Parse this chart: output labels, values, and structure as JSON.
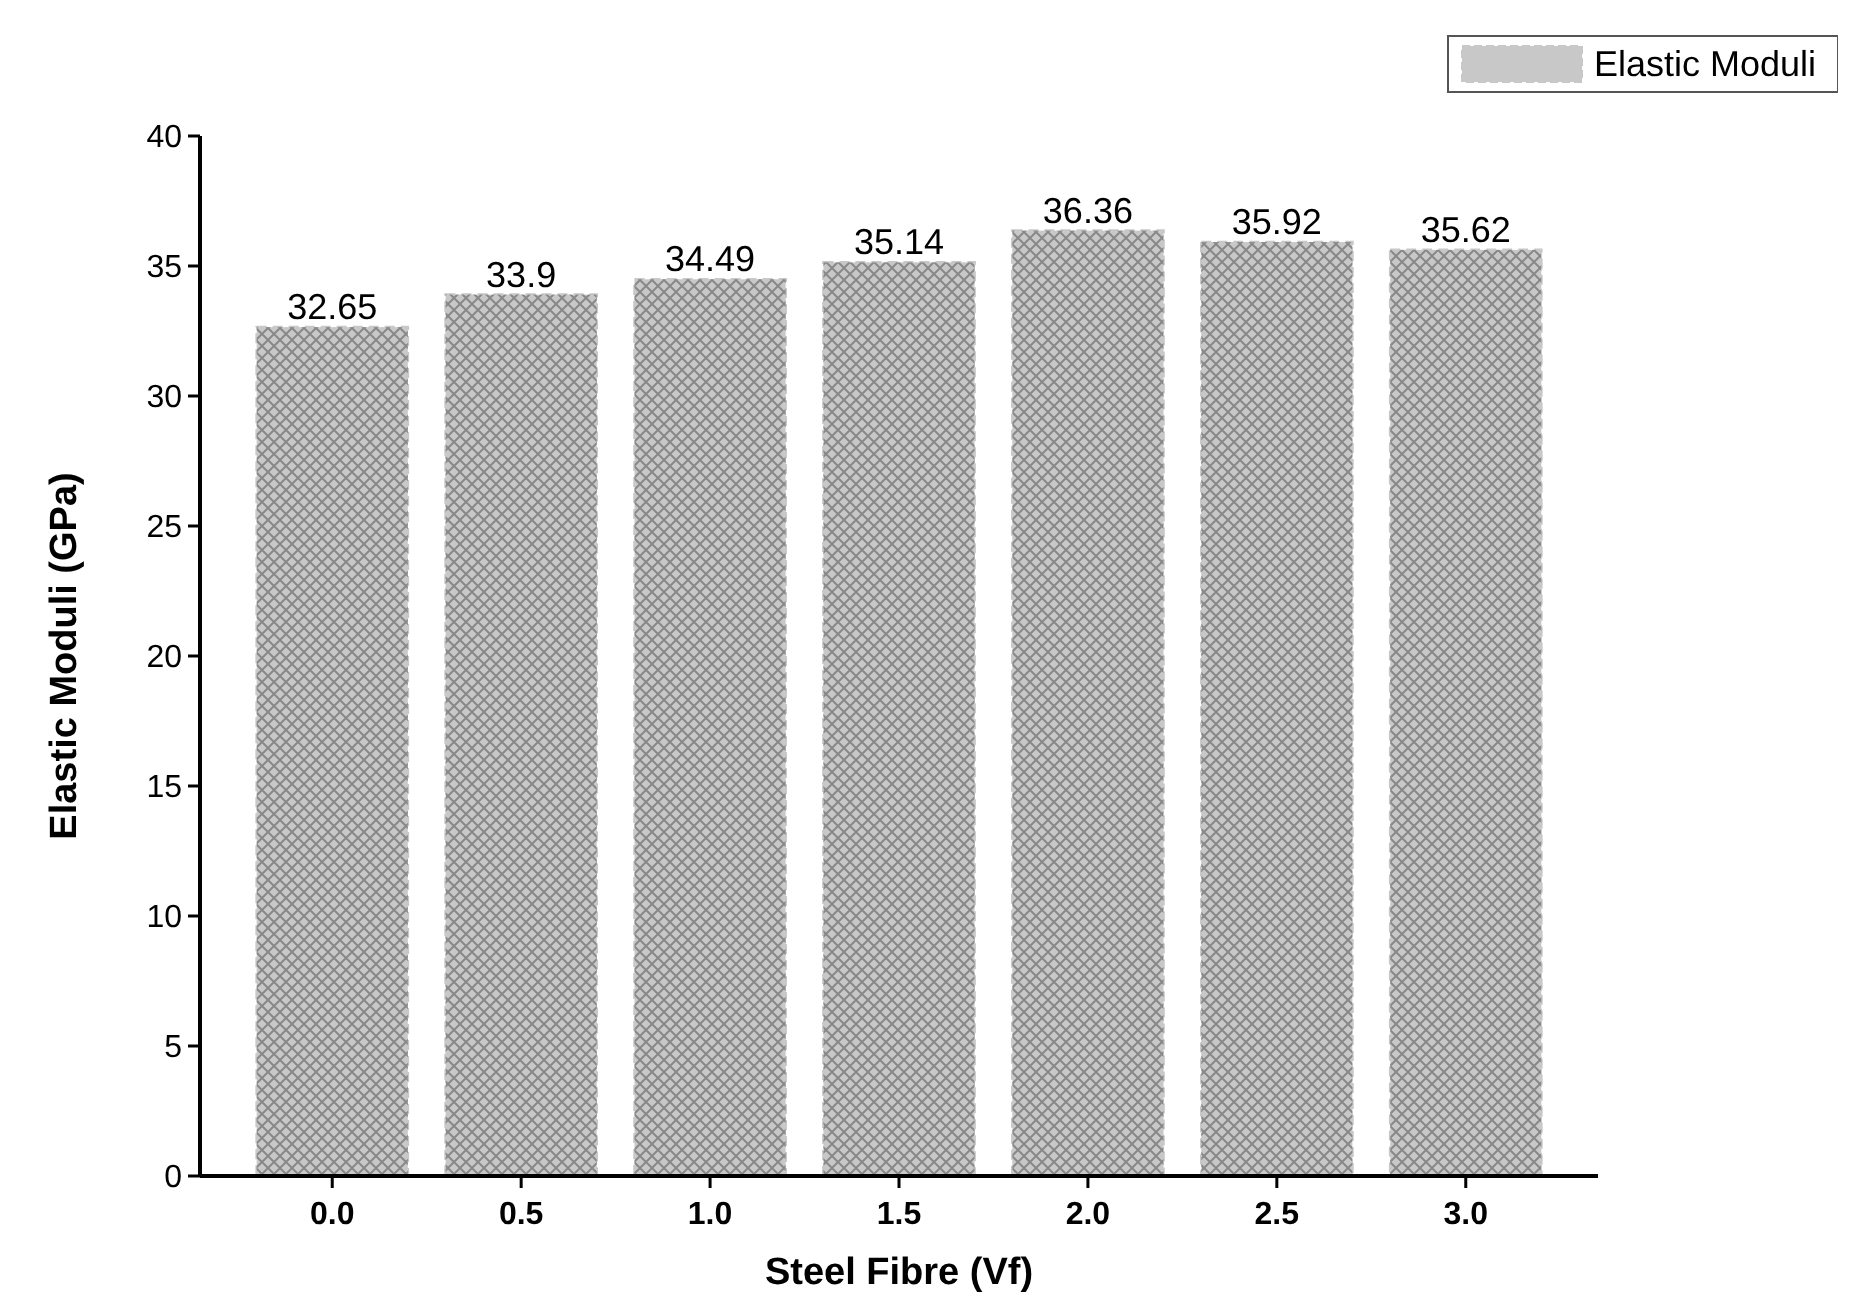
{
  "chart_data": {
    "type": "bar",
    "xlabel": "Steel Fibre (Vf)",
    "ylabel": "Elastic Moduli (GPa)",
    "categories": [
      "0.0",
      "0.5",
      "1.0",
      "1.5",
      "2.0",
      "2.5",
      "3.0"
    ],
    "series": [
      {
        "name": "Elastic Moduli",
        "color": "#c8c8c8",
        "values": [
          32.65,
          33.9,
          34.49,
          35.14,
          36.36,
          35.92,
          35.62
        ]
      }
    ],
    "ylim": [
      0,
      40
    ],
    "yticks": [
      0,
      5,
      10,
      15,
      20,
      25,
      30,
      35,
      40
    ],
    "data_labels": true,
    "legend": "top right",
    "grid": false
  }
}
